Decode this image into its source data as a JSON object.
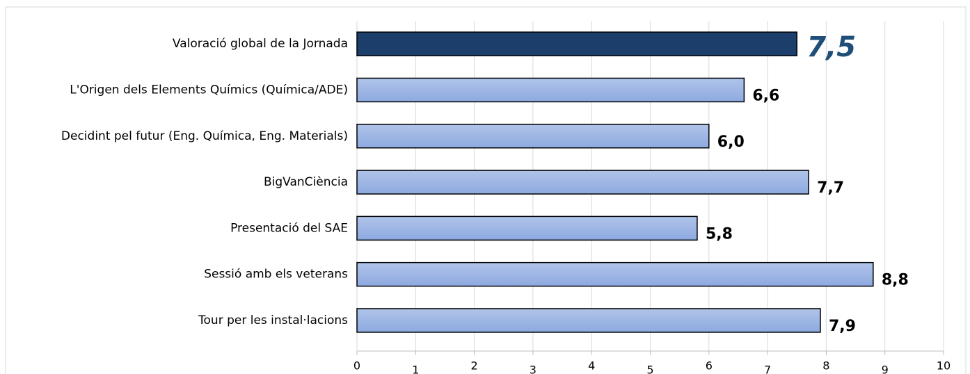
{
  "chart_data": {
    "type": "barh",
    "categories": [
      "Valoració global de la Jornada",
      "L'Origen dels Elements Químics (Química/ADE)",
      "Decidint pel futur (Eng. Química, Eng. Materials)",
      "BigVanCiència",
      "Presentació del SAE",
      "Sessió amb els veterans",
      "Tour per les instal·lacions"
    ],
    "values": [
      7.5,
      6.6,
      6.0,
      7.7,
      5.8,
      8.8,
      7.9
    ],
    "value_labels": [
      "7,5",
      "6,6",
      "6,0",
      "7,7",
      "5,8",
      "8,8",
      "7,9"
    ],
    "colors": [
      "#1b3f6a",
      "#8eaae0",
      "#8eaae0",
      "#8eaae0",
      "#8eaae0",
      "#8eaae0",
      "#8eaae0"
    ],
    "xlim": [
      0,
      10
    ],
    "xticks": [
      0,
      1,
      2,
      3,
      4,
      5,
      6,
      7,
      8,
      9,
      10
    ],
    "grid": true
  }
}
